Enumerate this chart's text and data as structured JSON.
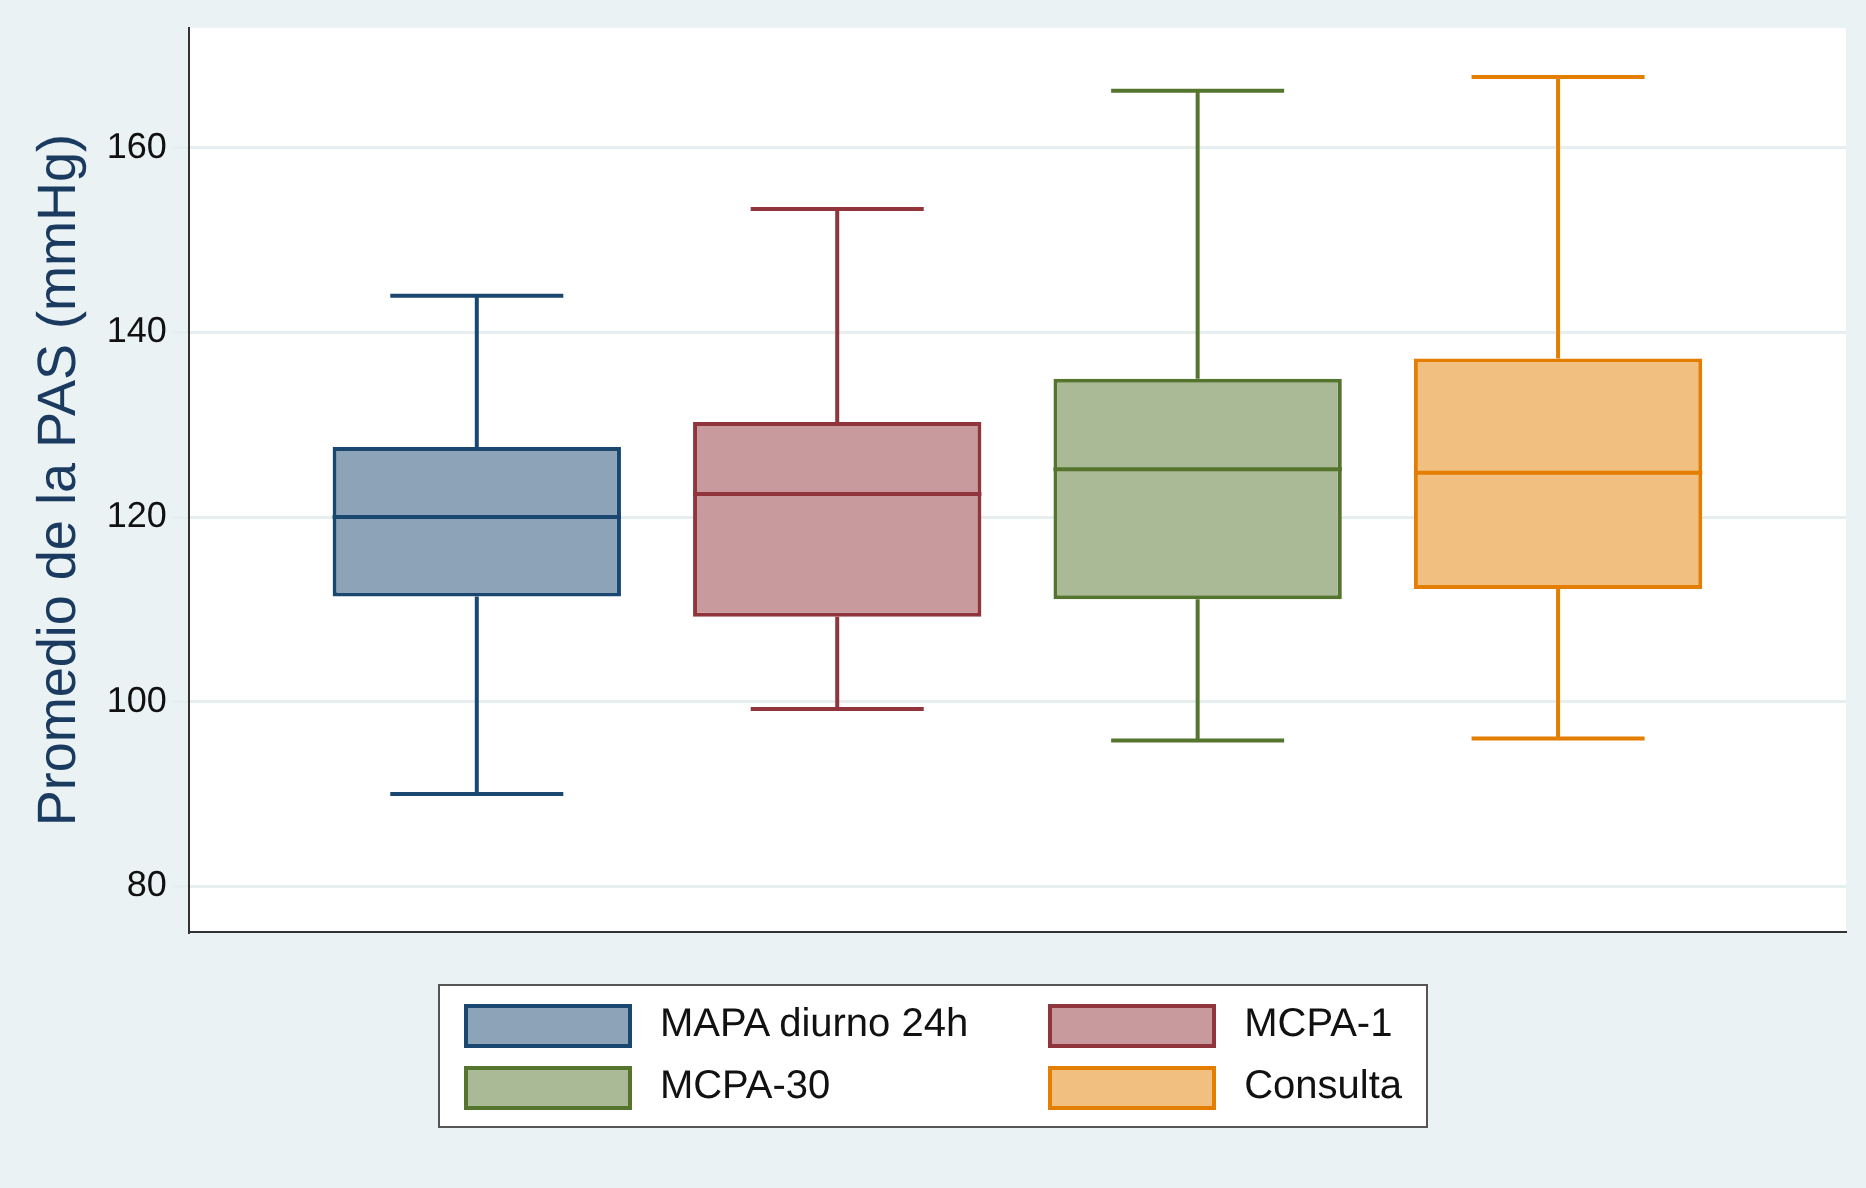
{
  "chart_data": {
    "type": "box",
    "ylabel": "Promedio de la PAS (mmHg)",
    "categories": [
      null
    ],
    "ylim": [
      75,
      173
    ],
    "yticks": [
      80,
      100,
      120,
      140,
      160
    ],
    "grid": "y",
    "tick_labels": "y",
    "legend": "bottom",
    "series": [
      {
        "name": "MAPA diurno 24h",
        "color": "#1a476f",
        "boxes": [
          {
            "low": 90,
            "q1": 111.4,
            "median": 120,
            "q3": 127.6,
            "high": 144
          }
        ]
      },
      {
        "name": "MCPA-1",
        "color": "#90353b",
        "boxes": [
          {
            "low": 99.2,
            "q1": 109.2,
            "median": 122.5,
            "q3": 130.3,
            "high": 153.4
          }
        ]
      },
      {
        "name": "MCPA-30",
        "color": "#55752f",
        "boxes": [
          {
            "low": 95.8,
            "q1": 111.1,
            "median": 125.2,
            "q3": 135,
            "high": 166.2
          }
        ]
      },
      {
        "name": "Consulta",
        "color": "#e37e00",
        "boxes": [
          {
            "low": 96,
            "q1": 112.2,
            "median": 124.8,
            "q3": 137.2,
            "high": 167.7
          }
        ]
      }
    ]
  }
}
